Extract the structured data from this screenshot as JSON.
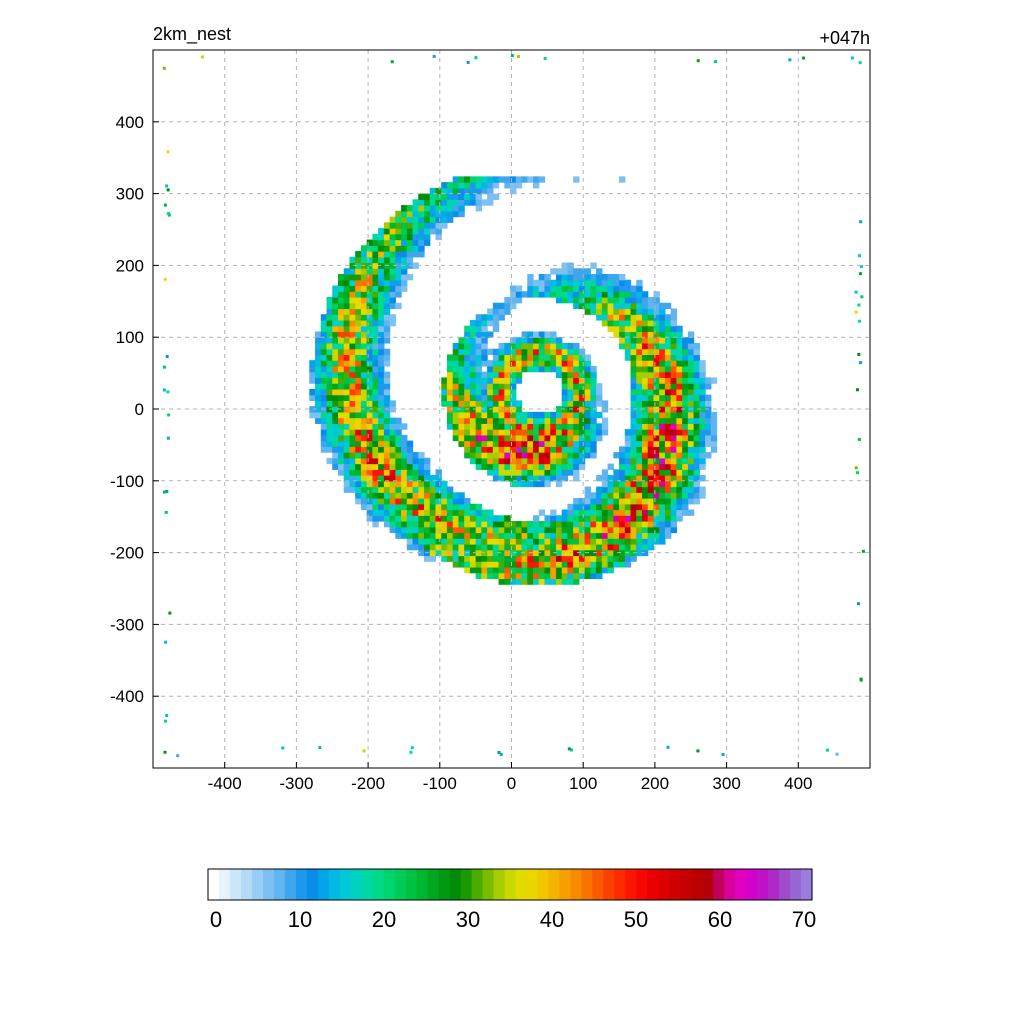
{
  "chart_data": {
    "type": "heatmap",
    "title": "2km_nest",
    "subtitle": "+047h",
    "xlabel": "",
    "ylabel": "",
    "xlim": [
      -500,
      500
    ],
    "ylim": [
      -500,
      500
    ],
    "x_ticks": [
      -400,
      -300,
      -200,
      -100,
      0,
      100,
      200,
      300,
      400
    ],
    "y_ticks": [
      -400,
      -300,
      -200,
      -100,
      0,
      100,
      200,
      300,
      400
    ],
    "grid": true,
    "colorbar": {
      "min": 0,
      "max": 70,
      "ticks": [
        0,
        10,
        20,
        30,
        40,
        50,
        60,
        70
      ],
      "colors": [
        "#ffffff",
        "#e6f3fc",
        "#cde7fa",
        "#b3dbf7",
        "#97cef5",
        "#7cc1f2",
        "#60b4f0",
        "#3fa6ee",
        "#1e98ec",
        "#0a8ce9",
        "#04a4e8",
        "#02b9e3",
        "#00c8d8",
        "#00d2bf",
        "#00d8a3",
        "#00d988",
        "#00d46e",
        "#00cc56",
        "#00c242",
        "#00b630",
        "#00a820",
        "#009a12",
        "#008c08",
        "#1a9a00",
        "#4aab00",
        "#7abd00",
        "#a6cd00",
        "#c9d800",
        "#e1dc00",
        "#ecd600",
        "#f2c700",
        "#f5b400",
        "#f79f00",
        "#f88a00",
        "#fa7200",
        "#fb5900",
        "#fc4000",
        "#fd2a00",
        "#fc1600",
        "#f50800",
        "#ea0000",
        "#dc0000",
        "#d00000",
        "#c60000",
        "#bc0000",
        "#b40008",
        "#c0005a",
        "#d8009c",
        "#e000c0",
        "#d400cc",
        "#c010c8",
        "#ae2ac6",
        "#a04ace",
        "#9a66d6",
        "#9a7ede"
      ]
    },
    "features": {
      "eye_center": [
        35,
        20
      ],
      "eye_radius": 35,
      "rainbands": [
        {
          "radius_range": [
            45,
            130
          ],
          "peak": 58
        },
        {
          "radius_range": [
            150,
            260
          ],
          "peak": 56
        },
        {
          "radius_range": [
            240,
            330
          ],
          "peak": 45
        }
      ]
    }
  }
}
